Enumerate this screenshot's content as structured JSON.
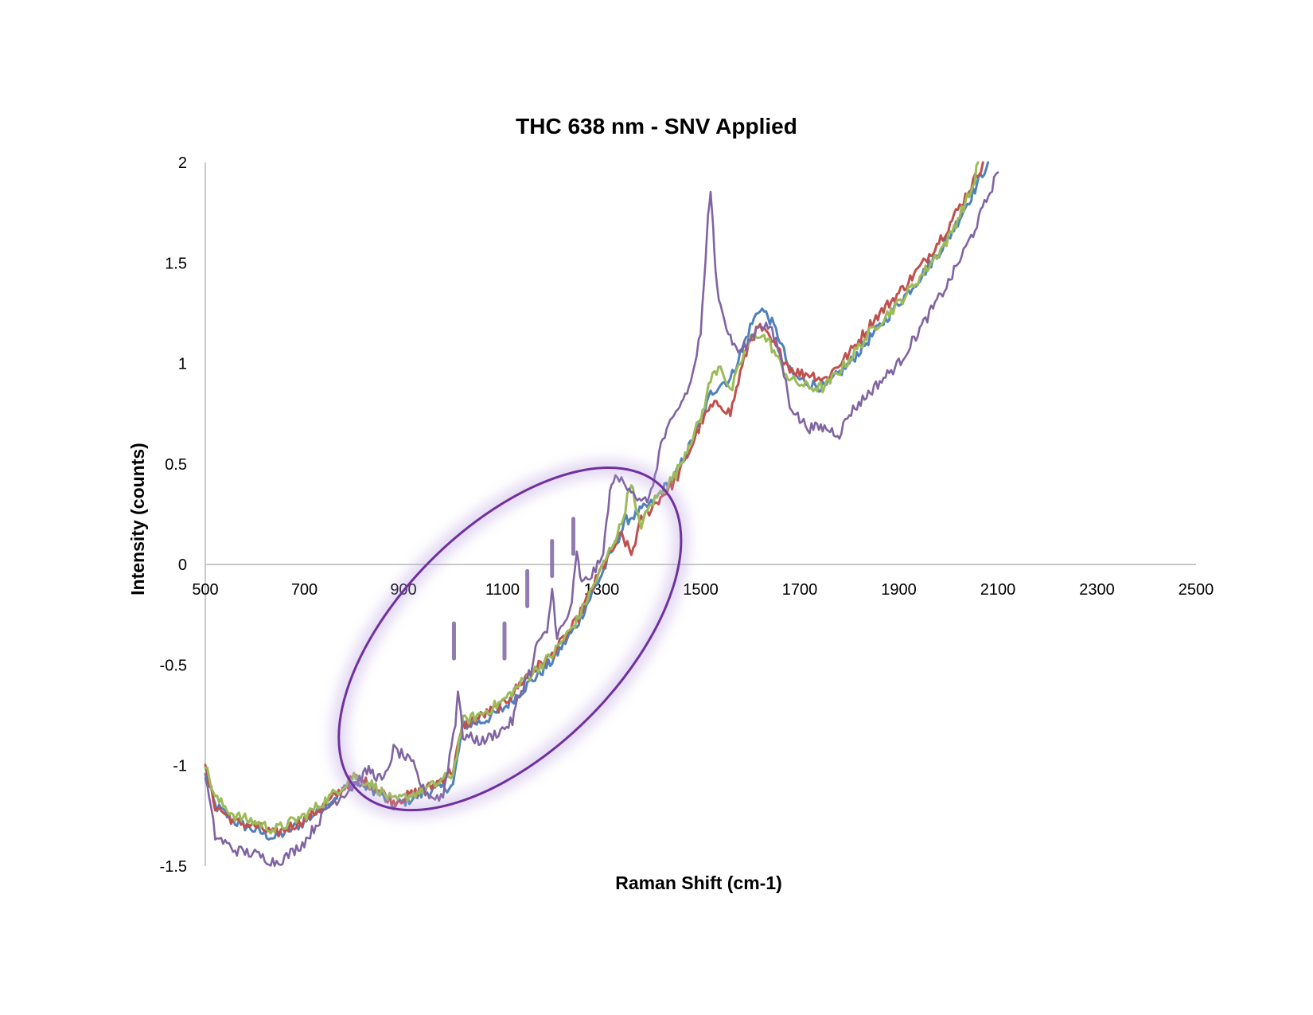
{
  "chart_data": {
    "type": "line",
    "title": "THC 638 nm - SNV Applied",
    "xlabel": "Raman Shift (cm-1)",
    "ylabel": "Intensity (counts)",
    "xlim": [
      500,
      2500
    ],
    "ylim": [
      -1.5,
      2
    ],
    "x_ticks": [
      "500",
      "700",
      "900",
      "1100",
      "1300",
      "1500",
      "1700",
      "1900",
      "2100",
      "2300",
      "2500"
    ],
    "y_ticks": [
      "2",
      "1.5",
      "1",
      "0.5",
      "0",
      "-0.5",
      "-1",
      "-1.5"
    ],
    "grid": false,
    "legend": "none",
    "series": [
      {
        "color": "#4f81bd",
        "x": [
          500,
          520,
          560,
          600,
          640,
          700,
          750,
          800,
          840,
          880,
          920,
          960,
          1000,
          1020,
          1060,
          1100,
          1150,
          1200,
          1250,
          1300,
          1350,
          1400,
          1450,
          1480,
          1500,
          1520,
          1540,
          1560,
          1580,
          1600,
          1620,
          1640,
          1660,
          1680,
          1700,
          1720,
          1750,
          1800,
          1850,
          1900,
          1950,
          2000,
          2050,
          2080
        ],
        "y": [
          -1.05,
          -1.2,
          -1.28,
          -1.32,
          -1.36,
          -1.28,
          -1.18,
          -1.08,
          -1.12,
          -1.2,
          -1.16,
          -1.12,
          -1.1,
          -0.8,
          -0.78,
          -0.72,
          -0.6,
          -0.48,
          -0.3,
          -0.05,
          0.22,
          0.3,
          0.45,
          0.6,
          0.7,
          0.85,
          0.9,
          0.92,
          1.05,
          1.18,
          1.28,
          1.22,
          1.12,
          0.96,
          0.92,
          0.9,
          0.88,
          1.0,
          1.15,
          1.3,
          1.45,
          1.62,
          1.85,
          2.0
        ]
      },
      {
        "color": "#c0504d",
        "x": [
          500,
          520,
          560,
          600,
          640,
          700,
          750,
          800,
          840,
          880,
          920,
          960,
          1000,
          1020,
          1060,
          1100,
          1150,
          1200,
          1250,
          1300,
          1340,
          1360,
          1380,
          1400,
          1450,
          1480,
          1500,
          1520,
          1540,
          1560,
          1580,
          1600,
          1620,
          1640,
          1660,
          1680,
          1700,
          1720,
          1750,
          1800,
          1850,
          1900,
          1950,
          2000,
          2050,
          2070
        ],
        "y": [
          -1.02,
          -1.2,
          -1.28,
          -1.3,
          -1.34,
          -1.27,
          -1.18,
          -1.06,
          -1.1,
          -1.18,
          -1.14,
          -1.1,
          -1.02,
          -0.8,
          -0.75,
          -0.7,
          -0.55,
          -0.45,
          -0.28,
          -0.02,
          0.15,
          0.05,
          0.22,
          0.28,
          0.42,
          0.58,
          0.7,
          0.78,
          0.8,
          0.75,
          0.95,
          1.12,
          1.18,
          1.12,
          1.05,
          0.98,
          0.95,
          0.95,
          0.92,
          1.05,
          1.22,
          1.35,
          1.5,
          1.68,
          1.9,
          2.0
        ]
      },
      {
        "color": "#9bbb59",
        "x": [
          500,
          520,
          560,
          600,
          640,
          700,
          750,
          800,
          840,
          880,
          920,
          960,
          1000,
          1020,
          1060,
          1100,
          1150,
          1200,
          1250,
          1300,
          1340,
          1360,
          1370,
          1380,
          1400,
          1450,
          1480,
          1500,
          1520,
          1540,
          1560,
          1580,
          1600,
          1620,
          1640,
          1660,
          1680,
          1700,
          1720,
          1750,
          1800,
          1850,
          1900,
          1950,
          2000,
          2050,
          2060
        ],
        "y": [
          -1.0,
          -1.16,
          -1.25,
          -1.28,
          -1.32,
          -1.25,
          -1.16,
          -1.05,
          -1.1,
          -1.18,
          -1.14,
          -1.1,
          -1.04,
          -0.78,
          -0.74,
          -0.68,
          -0.56,
          -0.45,
          -0.28,
          -0.02,
          0.2,
          0.42,
          0.25,
          0.2,
          0.3,
          0.45,
          0.62,
          0.72,
          0.92,
          1.0,
          0.85,
          1.0,
          1.12,
          1.15,
          1.1,
          1.0,
          0.92,
          0.9,
          0.88,
          0.88,
          1.02,
          1.18,
          1.3,
          1.45,
          1.62,
          1.88,
          2.0
        ]
      },
      {
        "color": "#8064a2",
        "x": [
          500,
          520,
          560,
          600,
          640,
          660,
          700,
          750,
          800,
          830,
          860,
          880,
          900,
          920,
          940,
          960,
          980,
          990,
          1000,
          1005,
          1010,
          1020,
          1060,
          1100,
          1120,
          1130,
          1150,
          1160,
          1170,
          1190,
          1200,
          1210,
          1230,
          1240,
          1250,
          1260,
          1280,
          1300,
          1310,
          1320,
          1340,
          1360,
          1380,
          1400,
          1420,
          1450,
          1480,
          1500,
          1510,
          1515,
          1520,
          1525,
          1530,
          1540,
          1560,
          1580,
          1600,
          1620,
          1640,
          1660,
          1680,
          1700,
          1720,
          1750,
          1780,
          1800,
          1850,
          1900,
          1950,
          2000,
          2050,
          2100
        ],
        "y": [
          -1.05,
          -1.35,
          -1.42,
          -1.44,
          -1.48,
          -1.46,
          -1.38,
          -1.2,
          -1.1,
          -1.02,
          -1.08,
          -0.92,
          -0.95,
          -1.0,
          -1.12,
          -1.16,
          -1.15,
          -1.0,
          -0.85,
          -0.78,
          -0.62,
          -0.85,
          -0.88,
          -0.82,
          -0.78,
          -0.68,
          -0.55,
          -0.52,
          -0.38,
          -0.35,
          -0.12,
          -0.35,
          -0.28,
          -0.18,
          0.05,
          -0.1,
          -0.05,
          0.02,
          0.2,
          0.42,
          0.42,
          0.38,
          0.3,
          0.35,
          0.6,
          0.75,
          0.9,
          1.15,
          1.5,
          1.75,
          1.88,
          1.7,
          1.45,
          1.28,
          1.12,
          1.05,
          1.12,
          1.2,
          1.18,
          1.05,
          0.8,
          0.72,
          0.68,
          0.68,
          0.65,
          0.75,
          0.88,
          1.0,
          1.2,
          1.4,
          1.65,
          1.95
        ]
      }
    ],
    "annotations": {
      "ellipse": "purple ellipse highlighting the 900–1350 cm-1 region",
      "peak_markers_x": [
        1002,
        1104,
        1150,
        1200,
        1243
      ]
    }
  }
}
